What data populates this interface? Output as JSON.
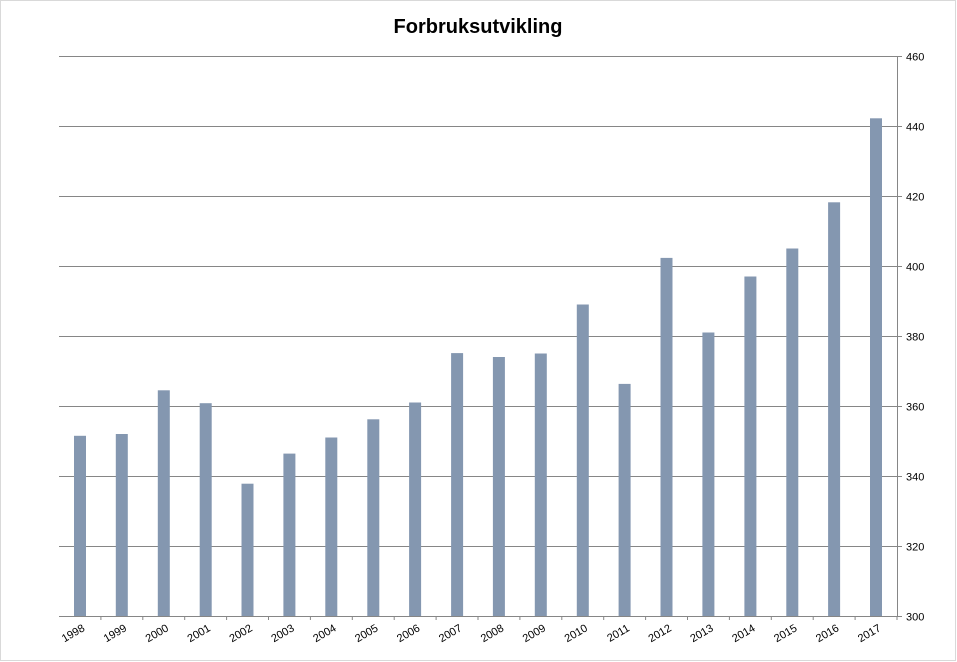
{
  "chart_data": {
    "type": "bar",
    "title": "Forbruksutvikling",
    "xlabel": "",
    "ylabel": "",
    "categories": [
      "1998",
      "1999",
      "2000",
      "2001",
      "2002",
      "2003",
      "2004",
      "2005",
      "2006",
      "2007",
      "2008",
      "2009",
      "2010",
      "2011",
      "2012",
      "2013",
      "2014",
      "2015",
      "2016",
      "2017"
    ],
    "values": [
      351.5,
      352,
      364.5,
      360.8,
      337.8,
      346.4,
      351,
      356.2,
      361,
      375.1,
      374,
      375,
      389,
      366.3,
      402.3,
      381,
      397,
      405,
      418.2,
      442.2
    ],
    "ylim": [
      300,
      460
    ],
    "yticks": [
      300,
      320,
      340,
      360,
      380,
      400,
      420,
      440,
      460
    ],
    "y_axis_side": "right",
    "grid": true,
    "legend": "none",
    "bar_color": "#8497B0"
  }
}
